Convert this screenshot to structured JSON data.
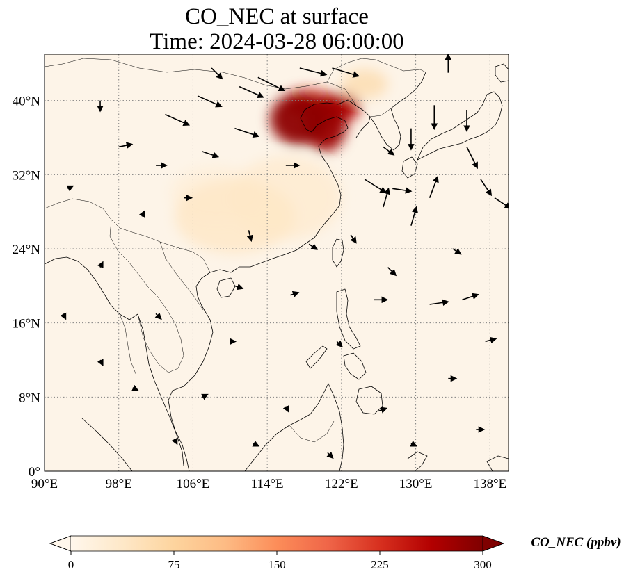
{
  "title": {
    "line1": "CO_NEC at surface",
    "line2": "Time: 2024-03-28 06:00:00"
  },
  "map": {
    "projection": "PlateCarree",
    "extent": {
      "lon": [
        90,
        140
      ],
      "lat": [
        0,
        45
      ]
    },
    "gridlines": "dotted gray",
    "lat_ticks": [
      {
        "value": 0,
        "label": "0°"
      },
      {
        "value": 8,
        "label": "8°N"
      },
      {
        "value": 16,
        "label": "16°N"
      },
      {
        "value": 24,
        "label": "24°N"
      },
      {
        "value": 32,
        "label": "32°N"
      },
      {
        "value": 40,
        "label": "40°N"
      }
    ],
    "lon_ticks": [
      {
        "value": 90,
        "label": "90°E"
      },
      {
        "value": 98,
        "label": "98°E"
      },
      {
        "value": 106,
        "label": "106°E"
      },
      {
        "value": 114,
        "label": "114°E"
      },
      {
        "value": 122,
        "label": "122°E"
      },
      {
        "value": 130,
        "label": "130°E"
      },
      {
        "value": 138,
        "label": "138°E"
      }
    ],
    "colors": {
      "background": "#fdf4e8",
      "coast": "#000000",
      "grid": "#808080"
    }
  },
  "colorbar": {
    "label": "CO_NEC (ppbv)",
    "colormap": "OrRd",
    "range": [
      0,
      300
    ],
    "extend": "both",
    "ticks": [
      {
        "value": 0,
        "label": "0"
      },
      {
        "value": 75,
        "label": "75"
      },
      {
        "value": 150,
        "label": "150"
      },
      {
        "value": 225,
        "label": "225"
      },
      {
        "value": 300,
        "label": "300"
      }
    ],
    "stops": [
      "#fff7ec",
      "#fee8c8",
      "#fdd49e",
      "#fdbb84",
      "#fc8d59",
      "#ef6548",
      "#d7301f",
      "#b30000",
      "#7f0000"
    ]
  },
  "plumes": [
    {
      "lon": 117.5,
      "lat": 38.0,
      "value": 290,
      "rx": 3.2,
      "ry": 2.8
    },
    {
      "lon": 120.3,
      "lat": 37.5,
      "value": 280,
      "rx": 2.3,
      "ry": 3.0
    },
    {
      "lon": 121.5,
      "lat": 39.2,
      "value": 260,
      "rx": 2.5,
      "ry": 1.6
    },
    {
      "lon": 118.5,
      "lat": 39.8,
      "value": 230,
      "rx": 2.8,
      "ry": 1.4
    },
    {
      "lon": 124.5,
      "lat": 41.8,
      "value": 60,
      "rx": 2.5,
      "ry": 1.6
    },
    {
      "lon": 110.5,
      "lat": 27.5,
      "value": 40,
      "rx": 6.5,
      "ry": 4.0
    },
    {
      "lon": 116.0,
      "lat": 29.5,
      "value": 30,
      "rx": 6.0,
      "ry": 4.5
    },
    {
      "lon": 108.5,
      "lat": 30.0,
      "value": 20,
      "rx": 5.0,
      "ry": 3.0
    }
  ],
  "wind_vectors": [
    {
      "lon": 113.0,
      "lat": 42.5,
      "u": 1.0,
      "v": -0.5
    },
    {
      "lon": 117.5,
      "lat": 43.5,
      "u": 1.0,
      "v": -0.25
    },
    {
      "lon": 121.0,
      "lat": 43.5,
      "u": 1.0,
      "v": -0.3
    },
    {
      "lon": 111.0,
      "lat": 41.5,
      "u": 0.9,
      "v": -0.4
    },
    {
      "lon": 106.5,
      "lat": 40.5,
      "u": 0.9,
      "v": -0.4
    },
    {
      "lon": 103.0,
      "lat": 38.5,
      "u": 0.9,
      "v": -0.4
    },
    {
      "lon": 110.5,
      "lat": 37.0,
      "u": 0.9,
      "v": -0.3
    },
    {
      "lon": 107.0,
      "lat": 34.5,
      "u": 0.6,
      "v": -0.2
    },
    {
      "lon": 116.0,
      "lat": 33.0,
      "u": 0.5,
      "v": 0.0
    },
    {
      "lon": 124.5,
      "lat": 31.5,
      "u": 0.8,
      "v": -0.5
    },
    {
      "lon": 127.5,
      "lat": 30.5,
      "u": 0.7,
      "v": -0.1
    },
    {
      "lon": 126.5,
      "lat": 35.0,
      "u": 0.4,
      "v": -0.3
    },
    {
      "lon": 129.5,
      "lat": 37.0,
      "u": 0.0,
      "v": -0.8
    },
    {
      "lon": 132.0,
      "lat": 39.5,
      "u": 0.0,
      "v": -0.9
    },
    {
      "lon": 135.5,
      "lat": 39.0,
      "u": 0.0,
      "v": -0.8
    },
    {
      "lon": 135.5,
      "lat": 35.0,
      "u": 0.4,
      "v": -0.8
    },
    {
      "lon": 137.0,
      "lat": 31.5,
      "u": 0.4,
      "v": -0.6
    },
    {
      "lon": 138.5,
      "lat": 29.5,
      "u": 0.6,
      "v": -0.4
    },
    {
      "lon": 131.5,
      "lat": 29.5,
      "u": 0.3,
      "v": 0.8
    },
    {
      "lon": 129.5,
      "lat": 26.5,
      "u": 0.2,
      "v": 0.7
    },
    {
      "lon": 126.5,
      "lat": 28.5,
      "u": 0.2,
      "v": 0.7
    },
    {
      "lon": 133.5,
      "lat": 43.0,
      "u": 0.0,
      "v": 0.7
    },
    {
      "lon": 108.0,
      "lat": 43.5,
      "u": 0.4,
      "v": -0.4
    },
    {
      "lon": 96.0,
      "lat": 40.0,
      "u": 0.0,
      "v": -0.4
    },
    {
      "lon": 98.0,
      "lat": 35.0,
      "u": 0.5,
      "v": 0.1
    },
    {
      "lon": 102.0,
      "lat": 33.0,
      "u": 0.4,
      "v": 0.0
    },
    {
      "lon": 105.0,
      "lat": 29.5,
      "u": 0.3,
      "v": 0.0
    },
    {
      "lon": 112.0,
      "lat": 26.0,
      "u": 0.1,
      "v": -0.4
    },
    {
      "lon": 118.5,
      "lat": 24.5,
      "u": 0.3,
      "v": -0.2
    },
    {
      "lon": 123.0,
      "lat": 25.5,
      "u": 0.2,
      "v": -0.3
    },
    {
      "lon": 110.5,
      "lat": 20.0,
      "u": 0.3,
      "v": -0.1
    },
    {
      "lon": 116.5,
      "lat": 19.0,
      "u": 0.3,
      "v": 0.1
    },
    {
      "lon": 125.5,
      "lat": 18.5,
      "u": 0.5,
      "v": 0.0
    },
    {
      "lon": 131.5,
      "lat": 18.0,
      "u": 0.7,
      "v": 0.1
    },
    {
      "lon": 135.0,
      "lat": 18.5,
      "u": 0.6,
      "v": 0.2
    },
    {
      "lon": 127.0,
      "lat": 22.0,
      "u": 0.3,
      "v": -0.3
    },
    {
      "lon": 134.0,
      "lat": 24.0,
      "u": 0.3,
      "v": -0.2
    },
    {
      "lon": 121.5,
      "lat": 14.0,
      "u": 0.2,
      "v": -0.2
    },
    {
      "lon": 110.0,
      "lat": 14.0,
      "u": 0.2,
      "v": 0.0
    },
    {
      "lon": 102.0,
      "lat": 17.0,
      "u": 0.2,
      "v": -0.2
    },
    {
      "lon": 96.0,
      "lat": 12.0,
      "u": 0.1,
      "v": -0.2
    },
    {
      "lon": 99.5,
      "lat": 9.0,
      "u": 0.2,
      "v": -0.1
    },
    {
      "lon": 107.0,
      "lat": 8.0,
      "u": 0.2,
      "v": 0.1
    },
    {
      "lon": 116.0,
      "lat": 7.0,
      "u": 0.1,
      "v": -0.2
    },
    {
      "lon": 126.0,
      "lat": 6.5,
      "u": 0.3,
      "v": 0.1
    },
    {
      "lon": 133.5,
      "lat": 10.0,
      "u": 0.3,
      "v": 0.0
    },
    {
      "lon": 137.5,
      "lat": 14.0,
      "u": 0.4,
      "v": 0.1
    },
    {
      "lon": 96.0,
      "lat": 22.0,
      "u": 0.1,
      "v": 0.2
    },
    {
      "lon": 100.5,
      "lat": 27.5,
      "u": 0.1,
      "v": 0.2
    },
    {
      "lon": 92.5,
      "lat": 30.5,
      "u": 0.2,
      "v": 0.1
    },
    {
      "lon": 92.0,
      "lat": 17.0,
      "u": 0.1,
      "v": -0.2
    },
    {
      "lon": 104.0,
      "lat": 3.5,
      "u": 0.1,
      "v": -0.2
    },
    {
      "lon": 112.5,
      "lat": 3.0,
      "u": 0.2,
      "v": -0.1
    },
    {
      "lon": 120.5,
      "lat": 2.0,
      "u": 0.2,
      "v": -0.2
    },
    {
      "lon": 129.5,
      "lat": 3.0,
      "u": 0.2,
      "v": -0.1
    },
    {
      "lon": 136.5,
      "lat": 4.5,
      "u": 0.3,
      "v": 0.0
    }
  ]
}
